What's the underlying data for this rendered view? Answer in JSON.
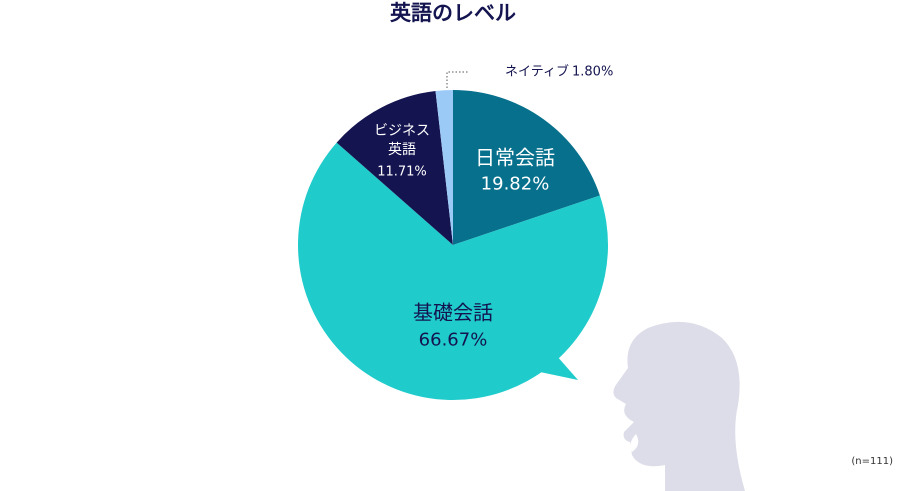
{
  "chart_data": {
    "type": "pie",
    "title": "英語のレベル",
    "categories": [
      "日常会話",
      "基礎会話",
      "ビジネス英語",
      "ネイティブ"
    ],
    "values": [
      19.82,
      66.67,
      11.71,
      1.8
    ],
    "value_labels": [
      "19.82%",
      "66.67%",
      "11.71%",
      "1.80%"
    ],
    "colors": [
      "#07708c",
      "#1fcbcb",
      "#141450",
      "#9ccaf7"
    ],
    "note": "(n=111)"
  }
}
